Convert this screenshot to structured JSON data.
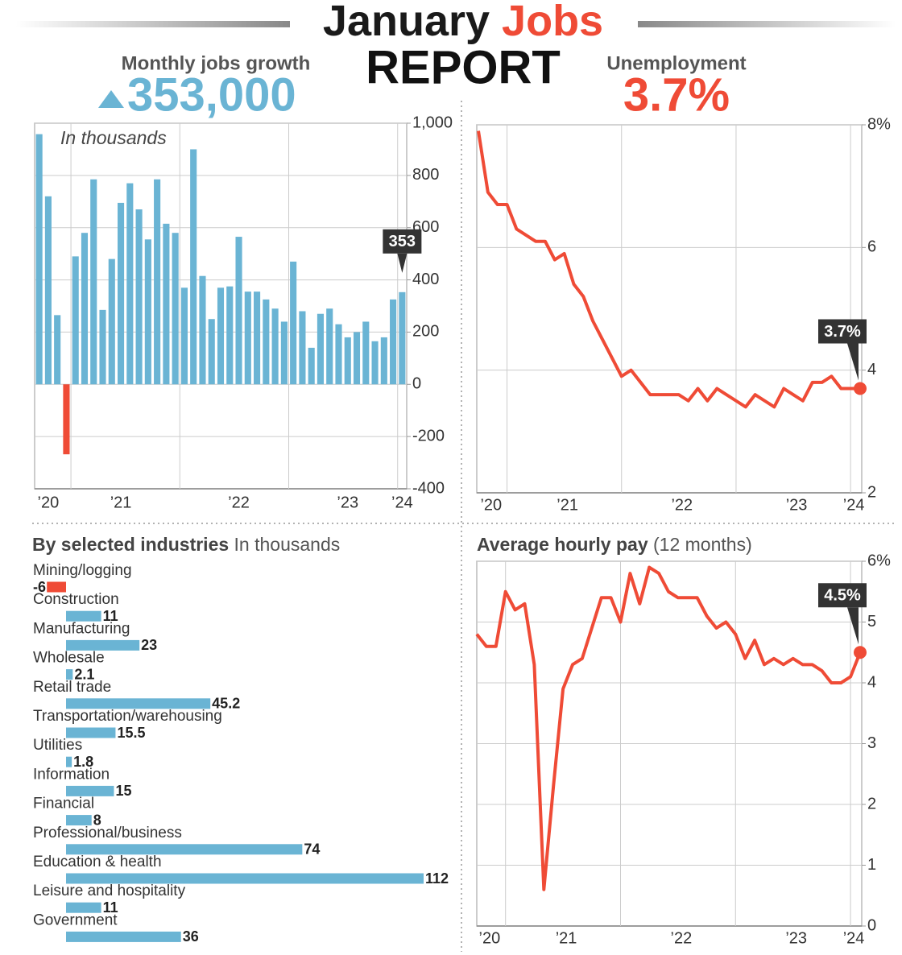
{
  "header": {
    "title_1": "January",
    "title_2": "Jobs",
    "title_3": "REPORT",
    "left_label": "Monthly jobs growth",
    "left_value": "353,000",
    "right_label": "Unemployment",
    "right_value": "3.7%"
  },
  "chart_data": [
    {
      "type": "bar",
      "annotation": "In thousands",
      "categories": [
        null,
        "’20",
        null,
        null,
        null,
        null,
        null,
        null,
        null,
        "’21",
        null,
        null,
        null,
        null,
        null,
        null,
        null,
        null,
        null,
        null,
        null,
        null,
        "’22",
        null,
        null,
        null,
        null,
        null,
        null,
        null,
        null,
        null,
        null,
        null,
        "’23",
        null,
        null,
        null,
        null,
        null,
        "’24"
      ],
      "values": [
        958,
        720,
        265,
        -268,
        490,
        580,
        785,
        285,
        480,
        695,
        770,
        670,
        555,
        785,
        615,
        580,
        370,
        900,
        415,
        250,
        370,
        375,
        565,
        355,
        355,
        325,
        290,
        240,
        470,
        280,
        140,
        270,
        290,
        230,
        180,
        200,
        240,
        165,
        180,
        325,
        353
      ],
      "color": "#6ab4d4",
      "negative_color": "#ef4b36",
      "ylim": [
        -400,
        1000
      ],
      "yticks": [
        -400,
        -200,
        0,
        200,
        400,
        600,
        800,
        {
          "value": 1000,
          "label": "1,000"
        }
      ],
      "grid": true
    },
    {
      "type": "line",
      "categories": [
        null,
        "’20",
        null,
        null,
        null,
        null,
        null,
        null,
        null,
        "’21",
        null,
        null,
        null,
        null,
        null,
        null,
        null,
        null,
        null,
        null,
        null,
        "’22",
        null,
        null,
        null,
        null,
        null,
        null,
        null,
        null,
        null,
        null,
        null,
        "’23",
        null,
        null,
        null,
        null,
        null,
        "’24",
        null
      ],
      "values": [
        7.9,
        6.9,
        6.7,
        6.7,
        6.3,
        6.2,
        6.1,
        6.1,
        5.8,
        5.9,
        5.4,
        5.2,
        4.8,
        4.5,
        4.2,
        3.9,
        4.0,
        3.8,
        3.6,
        3.6,
        3.6,
        3.6,
        3.5,
        3.7,
        3.5,
        3.7,
        3.6,
        3.5,
        3.4,
        3.6,
        3.5,
        3.4,
        3.7,
        3.6,
        3.5,
        3.8,
        3.8,
        3.9,
        3.7,
        3.7,
        3.7
      ],
      "value_labels": [
        null,
        null,
        null,
        null,
        null,
        null,
        null,
        null,
        null,
        null,
        null,
        null,
        null,
        null,
        null,
        null,
        null,
        null,
        null,
        null,
        null,
        null,
        null,
        null,
        null,
        null,
        null,
        null,
        null,
        null,
        null,
        null,
        null,
        null,
        null,
        null,
        null,
        null,
        null,
        null,
        "3.7%"
      ],
      "color": "#ef4b36",
      "ylim": [
        2,
        8
      ],
      "yticks": [
        2,
        4,
        6,
        {
          "value": 8,
          "label": "8%"
        }
      ],
      "grid": true
    },
    {
      "type": "hbar",
      "title": "By selected industries",
      "subtitle": "In thousands",
      "categories": [
        "Mining/logging",
        "Construction",
        "Manufacturing",
        "Wholesale",
        "Retail trade",
        "Transportation/warehousing",
        "Utilities",
        "Information",
        "Financial",
        "Professional/business",
        "Education & health",
        "Leisure and hospitality",
        "Government"
      ],
      "values": [
        -6,
        11,
        23,
        2.1,
        45.2,
        15.5,
        1.8,
        15,
        8,
        74,
        112,
        11,
        36
      ],
      "color": "#6ab4d4",
      "negative_color": "#ef4b36"
    },
    {
      "type": "line",
      "title": "Average hourly pay",
      "subtitle": "(12 months)",
      "categories": [
        null,
        "’20",
        null,
        null,
        null,
        null,
        null,
        null,
        null,
        "’21",
        null,
        null,
        null,
        null,
        null,
        null,
        null,
        null,
        null,
        null,
        null,
        "’22",
        null,
        null,
        null,
        null,
        null,
        null,
        null,
        null,
        null,
        null,
        null,
        "’23",
        null,
        null,
        null,
        null,
        null,
        "’24",
        null
      ],
      "values": [
        4.8,
        4.6,
        4.6,
        5.5,
        5.2,
        5.3,
        4.3,
        0.6,
        2.3,
        3.9,
        4.3,
        4.4,
        4.9,
        5.4,
        5.4,
        5.0,
        5.8,
        5.3,
        5.9,
        5.8,
        5.5,
        5.4,
        5.4,
        5.4,
        5.1,
        4.9,
        5.0,
        4.8,
        4.4,
        4.7,
        4.3,
        4.4,
        4.3,
        4.4,
        4.3,
        4.3,
        4.2,
        4.0,
        4.0,
        4.1,
        4.5
      ],
      "value_labels": [
        null,
        null,
        null,
        null,
        null,
        null,
        null,
        null,
        null,
        null,
        null,
        null,
        null,
        null,
        null,
        null,
        null,
        null,
        null,
        null,
        null,
        null,
        null,
        null,
        null,
        null,
        null,
        null,
        null,
        null,
        null,
        null,
        null,
        null,
        null,
        null,
        null,
        null,
        null,
        null,
        "4.5%"
      ],
      "color": "#ef4b36",
      "ylim": [
        0,
        6
      ],
      "yticks": [
        0,
        1,
        2,
        3,
        4,
        5,
        {
          "value": 6,
          "label": "6%"
        }
      ],
      "grid": true
    }
  ]
}
